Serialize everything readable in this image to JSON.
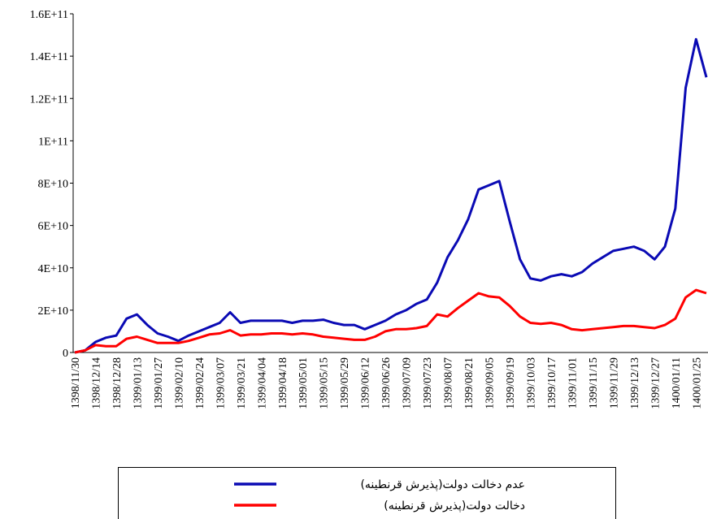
{
  "chart_data": {
    "type": "line",
    "categories": [
      "1398/11/30",
      null,
      "1398/12/14",
      null,
      "1398/12/28",
      null,
      "1399/01/13",
      null,
      "1399/01/27",
      null,
      "1399/02/10",
      null,
      "1399/02/24",
      null,
      "1399/03/07",
      null,
      "1399/03/21",
      null,
      "1399/04/04",
      null,
      "1399/04/18",
      null,
      "1399/05/01",
      null,
      "1399/05/15",
      null,
      "1399/05/29",
      null,
      "1399/06/12",
      null,
      "1399/06/26",
      null,
      "1399/07/09",
      null,
      "1399/07/23",
      null,
      "1399/08/07",
      null,
      "1399/08/21",
      null,
      "1399/09/05",
      null,
      "1399/09/19",
      null,
      "1399/10/03",
      null,
      "1399/10/17",
      null,
      "1399/11/01",
      null,
      "1399/11/15",
      null,
      "1399/11/29",
      null,
      "1399/12/13",
      null,
      "1399/12/27",
      null,
      "1400/01/11",
      null,
      "1400/01/25",
      null
    ],
    "series": [
      {
        "name": "عدم دخالت دولت(پذیرش قرنطینه)",
        "color": "#0a0ab4",
        "values": [
          0,
          1000000000,
          5000000000,
          7000000000,
          8000000000,
          16000000000,
          18000000000,
          13000000000,
          9000000000,
          7500000000,
          5500000000,
          8000000000,
          10000000000,
          12000000000,
          14000000000,
          19000000000,
          14000000000,
          15000000000,
          15000000000,
          15000000000,
          15000000000,
          14000000000,
          15000000000,
          15000000000,
          15500000000,
          14000000000,
          13000000000,
          13000000000,
          11000000000,
          13000000000,
          15000000000,
          18000000000,
          20000000000,
          23000000000,
          25000000000,
          33000000000,
          45000000000,
          53000000000,
          63000000000,
          77000000000,
          79000000000,
          81000000000,
          62000000000,
          44000000000,
          35000000000,
          34000000000,
          36000000000,
          37000000000,
          36000000000,
          38000000000,
          42000000000,
          45000000000,
          48000000000,
          49000000000,
          50000000000,
          48000000000,
          44000000000,
          50000000000,
          68000000000,
          125000000000,
          148000000000,
          130000000000
        ]
      },
      {
        "name": "دخالت دولت(پذیرش قرنطینه)",
        "color": "#ff0000",
        "values": [
          0,
          1000000000,
          3500000000,
          3000000000,
          3000000000,
          6500000000,
          7500000000,
          6000000000,
          4500000000,
          4500000000,
          4500000000,
          5500000000,
          7000000000,
          8500000000,
          9000000000,
          10500000000,
          8000000000,
          8500000000,
          8500000000,
          9000000000,
          9000000000,
          8500000000,
          9000000000,
          8500000000,
          7500000000,
          7000000000,
          6500000000,
          6000000000,
          6000000000,
          7500000000,
          10000000000,
          11000000000,
          11000000000,
          11500000000,
          12500000000,
          18000000000,
          17000000000,
          21000000000,
          24500000000,
          28000000000,
          26500000000,
          26000000000,
          22000000000,
          17000000000,
          14000000000,
          13500000000,
          14000000000,
          13000000000,
          11000000000,
          10500000000,
          11000000000,
          11500000000,
          12000000000,
          12500000000,
          12500000000,
          12000000000,
          11500000000,
          13000000000,
          16000000000,
          26000000000,
          29500000000,
          28000000000
        ]
      }
    ],
    "ylim": [
      0,
      160000000000
    ],
    "yticks": [
      0,
      {
        "value": 20000000000,
        "label": "2E+10"
      },
      {
        "value": 40000000000,
        "label": "4E+10"
      },
      {
        "value": 60000000000,
        "label": "6E+10"
      },
      {
        "value": 80000000000,
        "label": "8E+10"
      },
      {
        "value": 100000000000,
        "label": "1E+11"
      },
      {
        "value": 120000000000,
        "label": "1.2E+11"
      },
      {
        "value": 140000000000,
        "label": "1.4E+11"
      },
      {
        "value": 160000000000,
        "label": "1.6E+11"
      }
    ],
    "grid": false
  }
}
